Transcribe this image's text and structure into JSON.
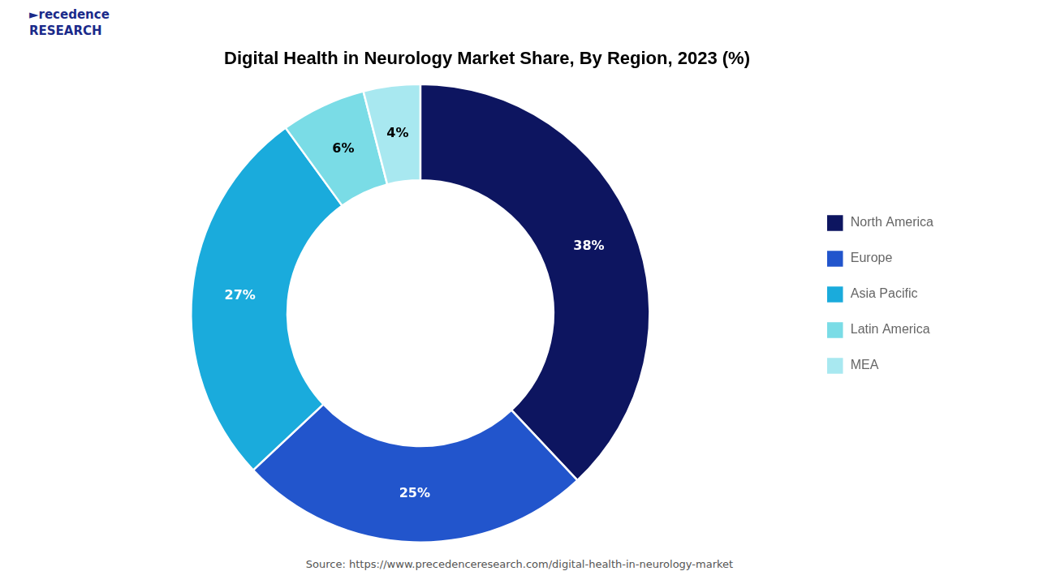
{
  "chart_data": {
    "type": "doughnut",
    "title": "Digital Health in Neurology Market Share, By Region, 2023 (%)",
    "categories": [
      "North America",
      "Europe",
      "Asia Pacific",
      "Latin America",
      "MEA"
    ],
    "values": [
      38,
      25,
      27,
      6,
      4
    ],
    "colors": [
      "#0d1560",
      "#2255cc",
      "#1aabdc",
      "#7adce6",
      "#a8e8f0"
    ],
    "data_labels": true,
    "value_labels": [
      "38%",
      "25%",
      "27%",
      "6%",
      "4%"
    ],
    "legend": "right",
    "annotations": [
      "►recedence\nRESEARCH",
      "Source: https://www.precedenceresearch.com/digital-health-in-neurology-market"
    ]
  }
}
